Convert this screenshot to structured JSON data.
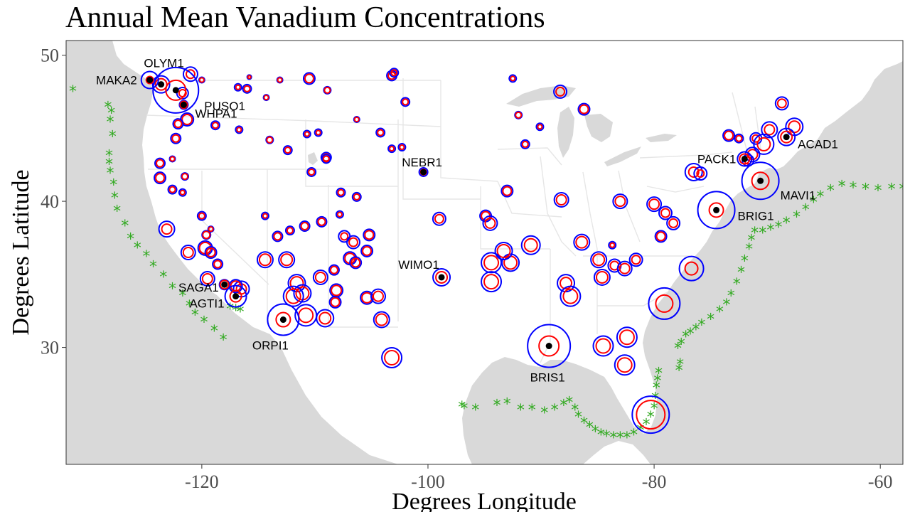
{
  "title": "Annual Mean Vanadium Concentrations",
  "axes": {
    "xlabel": "Degrees Longitude",
    "ylabel": "Degrees Latitude",
    "xlim": [
      -132,
      -58
    ],
    "ylim": [
      22,
      51
    ],
    "x_ticks": [
      -120,
      -100,
      -80,
      -60
    ],
    "y_ticks": [
      30,
      40,
      50
    ],
    "x_tick_labels": [
      "-120",
      "-100",
      "-80",
      "-60"
    ],
    "y_tick_labels": [
      "30",
      "40",
      "50"
    ]
  },
  "colors": {
    "land": "#ffffff",
    "water": "#d9d9d9",
    "borders": "#e6e6e6",
    "outer_ring": "#0000ff",
    "inner_ring": "#ff0000",
    "dot": "#000000",
    "shipping": "#33aa22"
  },
  "chart_data": {
    "type": "scatter",
    "title": "Annual Mean Vanadium Concentrations",
    "xlabel": "Degrees Longitude",
    "ylabel": "Degrees Latitude",
    "labeled_sites": [
      {
        "name": "OLYM1",
        "lon": -123.6,
        "lat": 48.0,
        "outer": 12,
        "inner": 8,
        "dot": true
      },
      {
        "name": "MAKA2",
        "lon": -124.6,
        "lat": 48.3,
        "outer": 12,
        "inner": 5,
        "dot": true
      },
      {
        "name": "PUSO1",
        "lon": -122.3,
        "lat": 47.6,
        "outer": 32,
        "inner": 14,
        "dot": true
      },
      {
        "name": "WHPA1",
        "lon": -121.6,
        "lat": 46.6,
        "outer": 6,
        "inner": 5,
        "dot": true
      },
      {
        "name": "NEBR1",
        "lon": -100.4,
        "lat": 42.0,
        "outer": 6,
        "inner": 4,
        "dot": true
      },
      {
        "name": "WIMO1",
        "lon": -98.8,
        "lat": 34.8,
        "outer": 12,
        "inner": 8,
        "dot": true
      },
      {
        "name": "SAGA1",
        "lon": -118.0,
        "lat": 34.3,
        "outer": 7,
        "inner": 6,
        "dot": true
      },
      {
        "name": "AGTI1",
        "lon": -117.0,
        "lat": 33.5,
        "outer": 15,
        "inner": 8,
        "dot": true
      },
      {
        "name": "ORPI1",
        "lon": -112.8,
        "lat": 31.9,
        "outer": 22,
        "inner": 10,
        "dot": true
      },
      {
        "name": "BRIS1",
        "lon": -89.3,
        "lat": 30.1,
        "outer": 30,
        "inner": 14,
        "dot": true
      },
      {
        "name": "PACK1",
        "lon": -72.0,
        "lat": 42.9,
        "outer": 10,
        "inner": 7,
        "dot": true
      },
      {
        "name": "ACAD1",
        "lon": -68.3,
        "lat": 44.4,
        "outer": 12,
        "inner": 8,
        "dot": true
      },
      {
        "name": "MAVI1",
        "lon": -70.6,
        "lat": 41.4,
        "outer": 26,
        "inner": 12,
        "dot": true
      },
      {
        "name": "BRIG1",
        "lon": -74.5,
        "lat": 39.4,
        "outer": 26,
        "inner": 10,
        "dot": true
      }
    ],
    "other_sites": [
      [
        -121.0,
        48.7,
        10,
        6
      ],
      [
        -120.0,
        48.3,
        4,
        3
      ],
      [
        -121.7,
        47.4,
        8,
        5
      ],
      [
        -121.3,
        45.6,
        9,
        7
      ],
      [
        -122.1,
        45.3,
        7,
        5
      ],
      [
        -122.3,
        44.3,
        7,
        5
      ],
      [
        -123.7,
        42.6,
        7,
        5
      ],
      [
        -123.7,
        41.6,
        8,
        6
      ],
      [
        -121.5,
        41.7,
        5,
        4
      ],
      [
        -122.6,
        40.8,
        6,
        4
      ],
      [
        -121.7,
        40.6,
        5,
        3
      ],
      [
        -122.6,
        42.9,
        4,
        3
      ],
      [
        -123.1,
        38.1,
        11,
        7
      ],
      [
        -120.0,
        39.0,
        6,
        4
      ],
      [
        -121.2,
        36.5,
        10,
        7
      ],
      [
        -119.6,
        37.7,
        6,
        5
      ],
      [
        -119.2,
        38.1,
        4,
        3
      ],
      [
        -119.7,
        36.8,
        10,
        8
      ],
      [
        -119.2,
        36.5,
        8,
        6
      ],
      [
        -118.6,
        35.7,
        7,
        5
      ],
      [
        -119.5,
        34.7,
        10,
        7
      ],
      [
        -116.5,
        34.0,
        11,
        7
      ],
      [
        -117.0,
        34.2,
        9,
        7
      ],
      [
        -118.8,
        45.2,
        6,
        4
      ],
      [
        -116.7,
        44.9,
        5,
        3
      ],
      [
        -116.8,
        47.8,
        5,
        3
      ],
      [
        -116.0,
        47.7,
        6,
        4
      ],
      [
        -115.8,
        48.5,
        3,
        2
      ],
      [
        -114.3,
        47.1,
        4,
        3
      ],
      [
        -113.1,
        48.3,
        4,
        3
      ],
      [
        -110.5,
        48.4,
        8,
        6
      ],
      [
        -108.9,
        47.6,
        5,
        4
      ],
      [
        -114.0,
        44.2,
        5,
        4
      ],
      [
        -112.4,
        43.5,
        6,
        4
      ],
      [
        -110.7,
        44.6,
        5,
        3
      ],
      [
        -109.7,
        44.7,
        5,
        3
      ],
      [
        -109.0,
        43.0,
        7,
        5
      ],
      [
        -109.0,
        42.9,
        6,
        4
      ],
      [
        -110.3,
        42.0,
        6,
        4
      ],
      [
        -114.4,
        39.0,
        5,
        3
      ],
      [
        -113.3,
        37.6,
        7,
        5
      ],
      [
        -112.2,
        38.0,
        6,
        4
      ],
      [
        -110.9,
        38.3,
        7,
        5
      ],
      [
        -109.4,
        38.6,
        7,
        5
      ],
      [
        -107.8,
        39.1,
        5,
        3
      ],
      [
        -107.7,
        40.6,
        6,
        4
      ],
      [
        -106.3,
        40.3,
        6,
        4
      ],
      [
        -107.4,
        37.6,
        8,
        5
      ],
      [
        -106.6,
        37.2,
        9,
        6
      ],
      [
        -105.2,
        37.7,
        8,
        6
      ],
      [
        -105.4,
        36.6,
        8,
        6
      ],
      [
        -106.9,
        36.1,
        9,
        7
      ],
      [
        -106.4,
        35.8,
        8,
        6
      ],
      [
        -108.3,
        35.3,
        7,
        5
      ],
      [
        -109.5,
        34.8,
        10,
        7
      ],
      [
        -112.5,
        36.0,
        11,
        8
      ],
      [
        -114.4,
        36.0,
        11,
        8
      ],
      [
        -111.6,
        34.4,
        12,
        9
      ],
      [
        -111.1,
        33.7,
        12,
        9
      ],
      [
        -111.9,
        33.5,
        14,
        10
      ],
      [
        -110.8,
        32.2,
        15,
        10
      ],
      [
        -109.1,
        32.0,
        12,
        8
      ],
      [
        -108.2,
        33.1,
        8,
        6
      ],
      [
        -105.4,
        33.4,
        9,
        7
      ],
      [
        -104.4,
        33.5,
        10,
        7
      ],
      [
        -103.2,
        29.3,
        14,
        10
      ],
      [
        -104.1,
        31.9,
        11,
        8
      ],
      [
        -108.1,
        33.9,
        9,
        7
      ],
      [
        -106.3,
        45.6,
        4,
        3
      ],
      [
        -104.2,
        44.7,
        6,
        4
      ],
      [
        -102.3,
        43.7,
        5,
        3
      ],
      [
        -103.2,
        43.6,
        5,
        3
      ],
      [
        -102.0,
        46.8,
        6,
        4
      ],
      [
        -103.2,
        48.6,
        7,
        5
      ],
      [
        -103.0,
        48.8,
        6,
        4
      ],
      [
        -99.0,
        38.8,
        9,
        6
      ],
      [
        -94.9,
        39.0,
        8,
        6
      ],
      [
        -94.5,
        38.5,
        10,
        7
      ],
      [
        -93.0,
        40.7,
        8,
        6
      ],
      [
        -91.4,
        43.9,
        6,
        4
      ],
      [
        -92.0,
        45.9,
        5,
        4
      ],
      [
        -92.5,
        48.4,
        5,
        3
      ],
      [
        -90.1,
        45.1,
        5,
        3
      ],
      [
        -88.3,
        47.5,
        9,
        6
      ],
      [
        -86.2,
        46.3,
        8,
        6
      ],
      [
        -88.2,
        40.1,
        10,
        7
      ],
      [
        -86.4,
        37.2,
        11,
        8
      ],
      [
        -83.7,
        37.0,
        5,
        3
      ],
      [
        -84.9,
        36.0,
        11,
        8
      ],
      [
        -83.5,
        35.6,
        9,
        6
      ],
      [
        -82.6,
        35.4,
        10,
        7
      ],
      [
        -81.6,
        36.0,
        9,
        6
      ],
      [
        -79.4,
        37.6,
        8,
        6
      ],
      [
        -78.3,
        38.5,
        9,
        6
      ],
      [
        -79.0,
        39.2,
        9,
        6
      ],
      [
        -80.0,
        39.8,
        10,
        7
      ],
      [
        -83.0,
        40.0,
        10,
        7
      ],
      [
        -92.7,
        35.8,
        12,
        9
      ],
      [
        -93.3,
        36.6,
        12,
        9
      ],
      [
        -94.4,
        35.8,
        14,
        10
      ],
      [
        -94.4,
        34.5,
        14,
        10
      ],
      [
        -90.9,
        37.0,
        13,
        9
      ],
      [
        -87.8,
        34.4,
        12,
        8
      ],
      [
        -87.4,
        33.5,
        14,
        10
      ],
      [
        -84.6,
        34.8,
        11,
        8
      ],
      [
        -84.5,
        30.1,
        14,
        10
      ],
      [
        -82.4,
        30.7,
        14,
        10
      ],
      [
        -82.6,
        28.8,
        14,
        10
      ],
      [
        -80.3,
        25.4,
        26,
        20
      ],
      [
        -79.1,
        33.0,
        22,
        12
      ],
      [
        -76.7,
        35.4,
        17,
        9
      ],
      [
        -76.5,
        42.0,
        12,
        7
      ],
      [
        -75.9,
        41.9,
        9,
        5
      ],
      [
        -73.4,
        44.5,
        8,
        6
      ],
      [
        -72.5,
        44.3,
        6,
        4
      ],
      [
        -71.3,
        43.2,
        10,
        7
      ],
      [
        -71.0,
        44.3,
        8,
        5
      ],
      [
        -69.8,
        44.9,
        11,
        7
      ],
      [
        -70.3,
        43.9,
        14,
        9
      ],
      [
        -68.7,
        46.7,
        9,
        6
      ],
      [
        -67.6,
        45.1,
        12,
        8
      ],
      [
        -71.7,
        42.8,
        8,
        5
      ]
    ],
    "shipping_lane": [
      [
        -131.4,
        47.6
      ],
      [
        -128.3,
        46.5
      ],
      [
        -128.0,
        46.1
      ],
      [
        -128.1,
        45.5
      ],
      [
        -127.9,
        44.5
      ],
      [
        -128.2,
        43.2
      ],
      [
        -128.2,
        42.6
      ],
      [
        -128.1,
        42.0
      ],
      [
        -127.8,
        41.2
      ],
      [
        -127.7,
        40.3
      ],
      [
        -127.5,
        39.4
      ],
      [
        -126.8,
        38.4
      ],
      [
        -126.3,
        37.5
      ],
      [
        -125.7,
        36.9
      ],
      [
        -124.9,
        36.3
      ],
      [
        -124.3,
        35.6
      ],
      [
        -123.4,
        34.9
      ],
      [
        -122.6,
        34.1
      ],
      [
        -121.7,
        33.6
      ],
      [
        -121.1,
        32.9
      ],
      [
        -120.6,
        32.3
      ],
      [
        -119.8,
        31.8
      ],
      [
        -118.9,
        31.2
      ],
      [
        -118.1,
        30.6
      ],
      [
        -117.5,
        32.7
      ],
      [
        -117.0,
        32.6
      ],
      [
        -116.6,
        32.5
      ],
      [
        -97.0,
        26.0
      ],
      [
        -96.8,
        25.9
      ],
      [
        -95.8,
        25.8
      ],
      [
        -93.9,
        26.1
      ],
      [
        -93.0,
        26.2
      ],
      [
        -91.8,
        25.8
      ],
      [
        -90.8,
        25.8
      ],
      [
        -89.7,
        25.6
      ],
      [
        -88.8,
        25.8
      ],
      [
        -88.0,
        26.1
      ],
      [
        -87.5,
        26.3
      ],
      [
        -87.0,
        25.8
      ],
      [
        -86.7,
        25.3
      ],
      [
        -86.2,
        24.9
      ],
      [
        -85.7,
        24.6
      ],
      [
        -85.2,
        24.3
      ],
      [
        -84.7,
        24.1
      ],
      [
        -84.2,
        24.0
      ],
      [
        -83.6,
        23.9
      ],
      [
        -83.0,
        23.9
      ],
      [
        -82.4,
        23.9
      ],
      [
        -81.8,
        24.1
      ],
      [
        -81.2,
        24.4
      ],
      [
        -80.7,
        24.8
      ],
      [
        -80.3,
        25.3
      ],
      [
        -80.0,
        25.9
      ],
      [
        -79.9,
        26.6
      ],
      [
        -79.8,
        27.3
      ],
      [
        -79.7,
        27.8
      ],
      [
        -79.6,
        28.3
      ],
      [
        -77.8,
        28.5
      ],
      [
        -77.7,
        28.9
      ],
      [
        -77.9,
        30.0
      ],
      [
        -77.6,
        30.3
      ],
      [
        -77.2,
        30.8
      ],
      [
        -76.8,
        31.0
      ],
      [
        -76.3,
        31.3
      ],
      [
        -75.8,
        31.6
      ],
      [
        -75.0,
        32.0
      ],
      [
        -74.2,
        32.5
      ],
      [
        -73.6,
        33.0
      ],
      [
        -73.2,
        33.6
      ],
      [
        -72.7,
        34.4
      ],
      [
        -72.3,
        35.2
      ],
      [
        -72.0,
        36.0
      ],
      [
        -71.6,
        36.8
      ],
      [
        -71.4,
        37.4
      ],
      [
        -71.1,
        37.9
      ],
      [
        -70.4,
        37.9
      ],
      [
        -69.7,
        38.1
      ],
      [
        -69.0,
        38.3
      ],
      [
        -68.3,
        38.6
      ],
      [
        -67.4,
        39.0
      ],
      [
        -66.6,
        39.5
      ],
      [
        -65.9,
        40.0
      ],
      [
        -65.3,
        40.4
      ],
      [
        -64.4,
        40.8
      ],
      [
        -63.4,
        41.1
      ],
      [
        -62.4,
        41.0
      ],
      [
        -61.3,
        40.9
      ],
      [
        -60.2,
        40.8
      ],
      [
        -59.0,
        40.9
      ],
      [
        -58.0,
        40.9
      ]
    ]
  }
}
